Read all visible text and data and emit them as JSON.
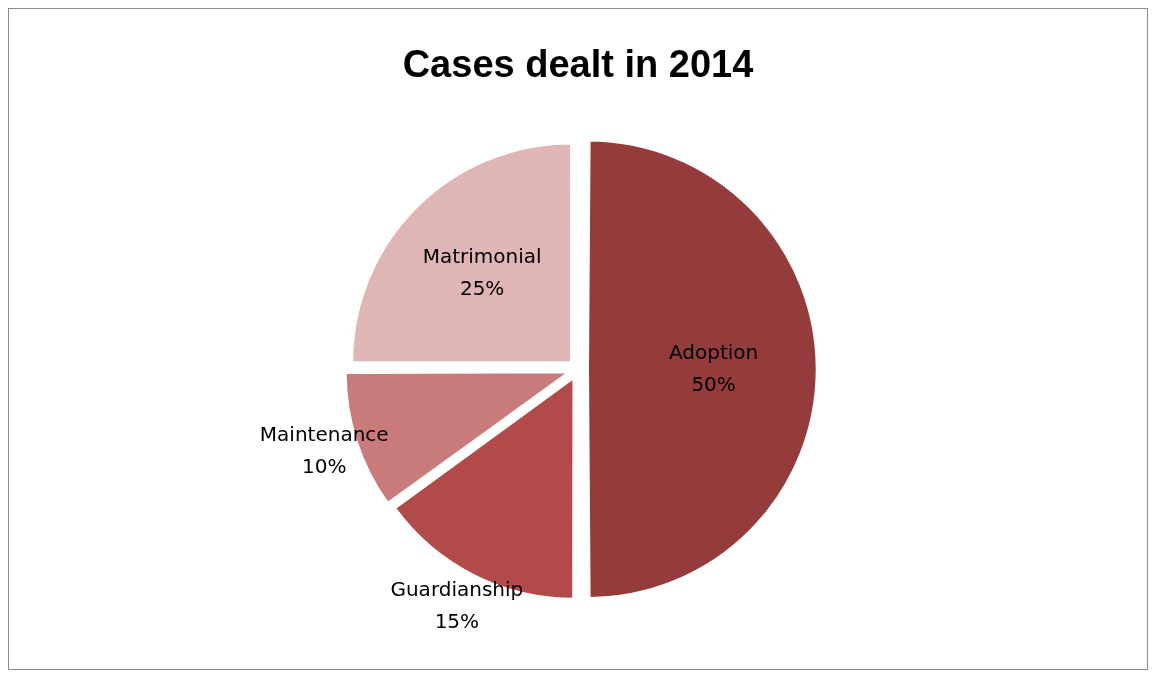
{
  "chart_data": {
    "type": "pie",
    "title": "Cases dealt in 2014",
    "categories": [
      "Adoption",
      "Guardianship",
      "Maintenance",
      "Matrimonial"
    ],
    "values": [
      50,
      15,
      10,
      25
    ],
    "colors": [
      "#943c3c",
      "#b34a4a",
      "#c97b7b",
      "#dfb5b5"
    ],
    "value_labels": [
      "50%",
      "15%",
      "10%",
      "25%"
    ],
    "legend": false
  }
}
